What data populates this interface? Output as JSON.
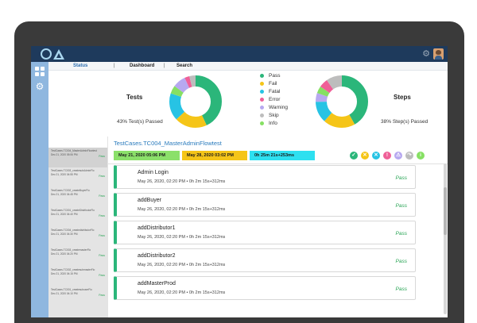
{
  "nav": {
    "items": [
      {
        "label": "Status",
        "active": true
      },
      {
        "label": "Dashboard",
        "active": false
      },
      {
        "label": "Search",
        "active": false
      }
    ],
    "separator": "|"
  },
  "summary": {
    "tests_title": "Tests",
    "tests_passed": "43% Test(s) Passed",
    "steps_title": "Steps",
    "steps_passed": "38% Step(s) Passed",
    "legend": [
      {
        "label": "Pass",
        "color": "#2bb67a"
      },
      {
        "label": "Fail",
        "color": "#f5c518"
      },
      {
        "label": "Fatal",
        "color": "#27c3e4"
      },
      {
        "label": "Error",
        "color": "#ef5f97"
      },
      {
        "label": "Warning",
        "color": "#b7a8f0"
      },
      {
        "label": "Skip",
        "color": "#bdbdbd"
      },
      {
        "label": "Info",
        "color": "#86e063"
      }
    ],
    "tests_chart": [
      {
        "status": "Pass",
        "value": 43,
        "color": "#2bb67a"
      },
      {
        "status": "Fail",
        "value": 20,
        "color": "#f5c518"
      },
      {
        "status": "Fatal",
        "value": 17,
        "color": "#27c3e4"
      },
      {
        "status": "Info",
        "value": 5,
        "color": "#86e063"
      },
      {
        "status": "Warning",
        "value": 8,
        "color": "#b7a8f0"
      },
      {
        "status": "Error",
        "value": 3,
        "color": "#ef5f97"
      },
      {
        "status": "Skip",
        "value": 4,
        "color": "#bdbdbd"
      }
    ],
    "steps_chart": [
      {
        "status": "Pass",
        "value": 38,
        "color": "#2bb67a"
      },
      {
        "status": "Fail",
        "value": 18,
        "color": "#f5c518"
      },
      {
        "status": "Fatal",
        "value": 12,
        "color": "#27c3e4"
      },
      {
        "status": "Warning",
        "value": 5,
        "color": "#b7a8f0"
      },
      {
        "status": "Info",
        "value": 4,
        "color": "#86e063"
      },
      {
        "status": "Error",
        "value": 5,
        "color": "#ef5f97"
      },
      {
        "status": "Skip",
        "value": 9,
        "color": "#bdbdbd"
      }
    ]
  },
  "testlist": [
    {
      "name": "TestCases.TC004_MasterAdminFlowtest",
      "date": "Dec 21, 2020 05:06 PM",
      "status": "Pass"
    },
    {
      "name": "TestCases.TC003_createsubAdminFlo",
      "date": "Dec 21, 2020 04:55 PM",
      "status": "Pass"
    },
    {
      "name": "TestCases.TC002_createBuyerFlo",
      "date": "Dec 21, 2020 04:45 PM",
      "status": "Pass"
    },
    {
      "name": "TestCases.TC001_createDistributorFlo",
      "date": "Dec 21, 2020 04:40 PM",
      "status": "Pass"
    },
    {
      "name": "TestCases.TC004_createdistributorFlo",
      "date": "Dec 21, 2020 04:30 PM",
      "status": "Pass"
    },
    {
      "name": "TestCases.TC003_createmasterFlo",
      "date": "Dec 21, 2020 04:20 PM",
      "status": "Pass"
    },
    {
      "name": "TestCases.TC002_createsubmasterFlo",
      "date": "Dec 21, 2020 04:15 PM",
      "status": "Pass"
    },
    {
      "name": "TestCases.TC001_createsubuserFlo",
      "date": "Dec 21, 2020 04:10 PM",
      "status": "Pass"
    }
  ],
  "detail": {
    "title": "TestCases.TC004_MasterAdminFlowtest",
    "start_time": "May 21, 2020 05:06 PM",
    "end_time": "May 28, 2020 03:02 PM",
    "duration": "0h 25m 21s+253ms",
    "start_color": "#8be06a",
    "end_color": "#f5c518",
    "duration_color": "#2ee0f0",
    "status_icons": [
      {
        "name": "pass",
        "glyph": "✓",
        "color": "#2bb67a"
      },
      {
        "name": "fail",
        "glyph": "✕",
        "color": "#f5c518"
      },
      {
        "name": "fatal",
        "glyph": "✕",
        "color": "#27c3e4"
      },
      {
        "name": "error",
        "glyph": "!",
        "color": "#ef5f97"
      },
      {
        "name": "warning",
        "glyph": "⚠",
        "color": "#b7a8f0"
      },
      {
        "name": "skip",
        "glyph": "↷",
        "color": "#bdbdbd"
      },
      {
        "name": "info",
        "glyph": "i",
        "color": "#86e063"
      }
    ],
    "steps": [
      {
        "name": "Admin Login",
        "time": "May 26, 2020, 02:20 PM • 0h 2m 15s+312ms",
        "status": "Pass"
      },
      {
        "name": "addBuyer",
        "time": "May 26, 2020, 02:20 PM • 0h 2m 15s+312ms",
        "status": "Pass"
      },
      {
        "name": "addDistributor1",
        "time": "May 26, 2020, 02:20 PM • 0h 2m 15s+312ms",
        "status": "Pass"
      },
      {
        "name": "addDistributor2",
        "time": "May 26, 2020, 02:20 PM • 0h 2m 15s+312ms",
        "status": "Pass"
      },
      {
        "name": "addMasterProd",
        "time": "May 26, 2020, 02:20 PM • 0h 2m 15s+312ms",
        "status": "Pass"
      }
    ]
  }
}
